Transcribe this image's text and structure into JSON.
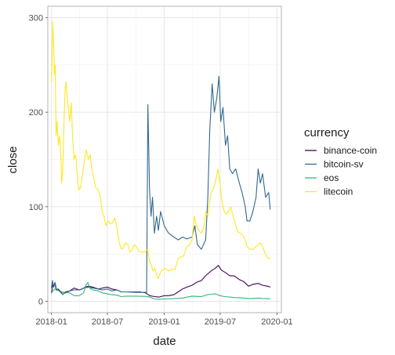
{
  "chart_data": {
    "type": "line",
    "xlabel": "date",
    "ylabel": "close",
    "x_scale": "date",
    "xlim": [
      "2017-12-20",
      "2020-01-15"
    ],
    "ylim": [
      -12,
      312
    ],
    "x_ticks": [
      {
        "date": "2018-01-01",
        "label": "2018-01"
      },
      {
        "date": "2018-07-01",
        "label": "2018-07"
      },
      {
        "date": "2019-01-01",
        "label": "2019-01"
      },
      {
        "date": "2019-07-01",
        "label": "2019-07"
      },
      {
        "date": "2020-01-01",
        "label": "2020-01"
      }
    ],
    "y_ticks": [
      0,
      100,
      200,
      300
    ],
    "grid": true,
    "legend_title": "currency",
    "legend_position": "right",
    "series": [
      {
        "name": "binance-coin",
        "color": "#440154",
        "points": [
          [
            "2018-01-01",
            8.5
          ],
          [
            "2018-01-05",
            18
          ],
          [
            "2018-01-08",
            15
          ],
          [
            "2018-01-12",
            20
          ],
          [
            "2018-01-16",
            12
          ],
          [
            "2018-01-22",
            13
          ],
          [
            "2018-02-01",
            10
          ],
          [
            "2018-02-06",
            7
          ],
          [
            "2018-02-15",
            10
          ],
          [
            "2018-03-01",
            11
          ],
          [
            "2018-03-15",
            14
          ],
          [
            "2018-04-01",
            12
          ],
          [
            "2018-04-10",
            13
          ],
          [
            "2018-04-20",
            15
          ],
          [
            "2018-05-01",
            16
          ],
          [
            "2018-05-15",
            15
          ],
          [
            "2018-06-01",
            13
          ],
          [
            "2018-06-15",
            14
          ],
          [
            "2018-07-01",
            15
          ],
          [
            "2018-07-15",
            13
          ],
          [
            "2018-08-01",
            12
          ],
          [
            "2018-08-15",
            10
          ],
          [
            "2018-09-01",
            10
          ],
          [
            "2018-09-15",
            10
          ],
          [
            "2018-10-01",
            10
          ],
          [
            "2018-10-15",
            10
          ],
          [
            "2018-11-01",
            9
          ],
          [
            "2018-11-15",
            6
          ],
          [
            "2018-12-01",
            5
          ],
          [
            "2018-12-15",
            4.5
          ],
          [
            "2019-01-01",
            6
          ],
          [
            "2019-01-15",
            6
          ],
          [
            "2019-02-01",
            7
          ],
          [
            "2019-02-15",
            10
          ],
          [
            "2019-03-01",
            13
          ],
          [
            "2019-03-15",
            15
          ],
          [
            "2019-04-01",
            17
          ],
          [
            "2019-04-15",
            20
          ],
          [
            "2019-05-01",
            22
          ],
          [
            "2019-05-15",
            27
          ],
          [
            "2019-06-01",
            32
          ],
          [
            "2019-06-15",
            35
          ],
          [
            "2019-06-25",
            38
          ],
          [
            "2019-07-05",
            33
          ],
          [
            "2019-07-20",
            30
          ],
          [
            "2019-08-01",
            27
          ],
          [
            "2019-08-15",
            27
          ],
          [
            "2019-09-01",
            23
          ],
          [
            "2019-09-15",
            21
          ],
          [
            "2019-10-01",
            16
          ],
          [
            "2019-10-15",
            18
          ],
          [
            "2019-11-01",
            19
          ],
          [
            "2019-11-15",
            17
          ],
          [
            "2019-12-01",
            16
          ],
          [
            "2019-12-10",
            15
          ]
        ]
      },
      {
        "name": "bitcoin-sv",
        "color": "#31688E",
        "points": [
          [
            "2018-01-01",
            14
          ],
          [
            "2018-01-04",
            22
          ],
          [
            "2018-01-08",
            15
          ],
          [
            "2018-01-12",
            20
          ],
          [
            "2018-01-18",
            12
          ],
          [
            "2018-02-01",
            10
          ],
          [
            "2018-02-15",
            9
          ],
          [
            "2018-03-01",
            11
          ],
          [
            "2018-03-15",
            12
          ],
          [
            "2018-04-01",
            12
          ],
          [
            "2018-04-15",
            14
          ],
          [
            "2018-05-01",
            15
          ],
          [
            "2018-05-15",
            14
          ],
          [
            "2018-06-01",
            13
          ],
          [
            "2018-06-15",
            12
          ],
          [
            "2018-07-01",
            13
          ],
          [
            "2018-07-15",
            11
          ],
          [
            "2018-08-01",
            12
          ],
          [
            "2018-08-15",
            10
          ],
          [
            "2018-09-01",
            10
          ],
          [
            "2018-10-01",
            9.5
          ],
          [
            "2018-11-05",
            9.5
          ],
          [
            "2018-11-09",
            208
          ],
          [
            "2018-11-14",
            120
          ],
          [
            "2018-11-19",
            90
          ],
          [
            "2018-11-24",
            110
          ],
          [
            "2018-11-30",
            72
          ],
          [
            "2018-12-07",
            90
          ],
          [
            "2018-12-13",
            75
          ],
          [
            "2018-12-20",
            95
          ],
          [
            "2019-01-01",
            80
          ],
          [
            "2019-01-15",
            72
          ],
          [
            "2019-02-01",
            68
          ],
          [
            "2019-02-15",
            65
          ],
          [
            "2019-03-01",
            68
          ],
          [
            "2019-03-15",
            66
          ],
          [
            "2019-04-01",
            68
          ],
          [
            "2019-04-10",
            80
          ],
          [
            "2019-04-18",
            60
          ],
          [
            "2019-05-01",
            55
          ],
          [
            "2019-05-15",
            65
          ],
          [
            "2019-05-22",
            110
          ],
          [
            "2019-05-28",
            180
          ],
          [
            "2019-06-05",
            230
          ],
          [
            "2019-06-12",
            200
          ],
          [
            "2019-06-20",
            215
          ],
          [
            "2019-06-27",
            238
          ],
          [
            "2019-07-03",
            190
          ],
          [
            "2019-07-10",
            205
          ],
          [
            "2019-07-18",
            165
          ],
          [
            "2019-07-25",
            175
          ],
          [
            "2019-08-01",
            140
          ],
          [
            "2019-08-10",
            135
          ],
          [
            "2019-08-20",
            140
          ],
          [
            "2019-09-01",
            125
          ],
          [
            "2019-09-10",
            115
          ],
          [
            "2019-09-20",
            100
          ],
          [
            "2019-09-26",
            85
          ],
          [
            "2019-10-05",
            85
          ],
          [
            "2019-10-15",
            95
          ],
          [
            "2019-10-25",
            110
          ],
          [
            "2019-11-01",
            140
          ],
          [
            "2019-11-08",
            125
          ],
          [
            "2019-11-15",
            135
          ],
          [
            "2019-11-25",
            110
          ],
          [
            "2019-12-05",
            115
          ],
          [
            "2019-12-10",
            97
          ]
        ]
      },
      {
        "name": "eos",
        "color": "#35B779",
        "points": [
          [
            "2018-01-01",
            9
          ],
          [
            "2018-01-08",
            12
          ],
          [
            "2018-01-15",
            14
          ],
          [
            "2018-01-25",
            11
          ],
          [
            "2018-02-06",
            7
          ],
          [
            "2018-02-15",
            9
          ],
          [
            "2018-03-01",
            9
          ],
          [
            "2018-03-15",
            6
          ],
          [
            "2018-04-01",
            6
          ],
          [
            "2018-04-15",
            9
          ],
          [
            "2018-04-22",
            17
          ],
          [
            "2018-04-29",
            20
          ],
          [
            "2018-05-05",
            14
          ],
          [
            "2018-05-15",
            12
          ],
          [
            "2018-06-01",
            11
          ],
          [
            "2018-06-15",
            9
          ],
          [
            "2018-07-01",
            8
          ],
          [
            "2018-07-15",
            7
          ],
          [
            "2018-08-01",
            6.5
          ],
          [
            "2018-08-15",
            5
          ],
          [
            "2018-09-01",
            5.5
          ],
          [
            "2018-10-01",
            5.5
          ],
          [
            "2018-11-01",
            5.2
          ],
          [
            "2018-11-15",
            4.5
          ],
          [
            "2018-12-01",
            2.5
          ],
          [
            "2018-12-15",
            2.2
          ],
          [
            "2019-01-01",
            2.6
          ],
          [
            "2019-02-01",
            2.8
          ],
          [
            "2019-03-01",
            3.5
          ],
          [
            "2019-04-01",
            5.5
          ],
          [
            "2019-05-01",
            5
          ],
          [
            "2019-05-20",
            7
          ],
          [
            "2019-06-01",
            7.5
          ],
          [
            "2019-06-15",
            8
          ],
          [
            "2019-07-01",
            6
          ],
          [
            "2019-07-15",
            5
          ],
          [
            "2019-08-01",
            4.5
          ],
          [
            "2019-08-15",
            4
          ],
          [
            "2019-09-01",
            3.8
          ],
          [
            "2019-09-15",
            3.5
          ],
          [
            "2019-10-01",
            3
          ],
          [
            "2019-10-15",
            3
          ],
          [
            "2019-11-01",
            3.5
          ],
          [
            "2019-11-15",
            3
          ],
          [
            "2019-12-01",
            2.8
          ],
          [
            "2019-12-10",
            2.6
          ]
        ]
      },
      {
        "name": "litecoin",
        "color": "#FDE725",
        "points": [
          [
            "2018-01-01",
            232
          ],
          [
            "2018-01-03",
            255
          ],
          [
            "2018-01-05",
            296
          ],
          [
            "2018-01-08",
            270
          ],
          [
            "2018-01-10",
            240
          ],
          [
            "2018-01-13",
            250
          ],
          [
            "2018-01-16",
            175
          ],
          [
            "2018-01-19",
            190
          ],
          [
            "2018-01-23",
            165
          ],
          [
            "2018-01-27",
            175
          ],
          [
            "2018-02-01",
            150
          ],
          [
            "2018-02-03",
            125
          ],
          [
            "2018-02-06",
            135
          ],
          [
            "2018-02-10",
            185
          ],
          [
            "2018-02-14",
            225
          ],
          [
            "2018-02-17",
            232
          ],
          [
            "2018-02-21",
            215
          ],
          [
            "2018-02-26",
            200
          ],
          [
            "2018-03-01",
            190
          ],
          [
            "2018-03-06",
            210
          ],
          [
            "2018-03-10",
            175
          ],
          [
            "2018-03-15",
            150
          ],
          [
            "2018-03-20",
            155
          ],
          [
            "2018-03-25",
            135
          ],
          [
            "2018-03-30",
            118
          ],
          [
            "2018-04-05",
            120
          ],
          [
            "2018-04-12",
            135
          ],
          [
            "2018-04-18",
            150
          ],
          [
            "2018-04-24",
            160
          ],
          [
            "2018-04-30",
            150
          ],
          [
            "2018-05-06",
            155
          ],
          [
            "2018-05-12",
            138
          ],
          [
            "2018-05-18",
            130
          ],
          [
            "2018-05-24",
            120
          ],
          [
            "2018-06-01",
            118
          ],
          [
            "2018-06-08",
            110
          ],
          [
            "2018-06-14",
            95
          ],
          [
            "2018-06-20",
            90
          ],
          [
            "2018-06-26",
            80
          ],
          [
            "2018-07-03",
            85
          ],
          [
            "2018-07-10",
            82
          ],
          [
            "2018-07-17",
            83
          ],
          [
            "2018-07-25",
            88
          ],
          [
            "2018-08-01",
            78
          ],
          [
            "2018-08-08",
            62
          ],
          [
            "2018-08-15",
            55
          ],
          [
            "2018-08-22",
            57
          ],
          [
            "2018-08-29",
            62
          ],
          [
            "2018-09-05",
            60
          ],
          [
            "2018-09-12",
            52
          ],
          [
            "2018-09-19",
            55
          ],
          [
            "2018-09-26",
            60
          ],
          [
            "2018-10-03",
            58
          ],
          [
            "2018-10-10",
            53
          ],
          [
            "2018-10-20",
            52
          ],
          [
            "2018-11-01",
            52
          ],
          [
            "2018-11-08",
            55
          ],
          [
            "2018-11-14",
            42
          ],
          [
            "2018-11-20",
            38
          ],
          [
            "2018-11-25",
            32
          ],
          [
            "2018-12-01",
            35
          ],
          [
            "2018-12-07",
            28
          ],
          [
            "2018-12-13",
            24
          ],
          [
            "2018-12-19",
            30
          ],
          [
            "2018-12-26",
            33
          ],
          [
            "2019-01-05",
            35
          ],
          [
            "2019-01-15",
            32
          ],
          [
            "2019-01-25",
            34
          ],
          [
            "2019-02-05",
            34
          ],
          [
            "2019-02-15",
            45
          ],
          [
            "2019-02-24",
            47
          ],
          [
            "2019-03-05",
            48
          ],
          [
            "2019-03-15",
            58
          ],
          [
            "2019-03-25",
            60
          ],
          [
            "2019-04-01",
            65
          ],
          [
            "2019-04-08",
            90
          ],
          [
            "2019-04-15",
            80
          ],
          [
            "2019-04-22",
            75
          ],
          [
            "2019-05-01",
            72
          ],
          [
            "2019-05-10",
            80
          ],
          [
            "2019-05-15",
            95
          ],
          [
            "2019-05-22",
            90
          ],
          [
            "2019-06-01",
            115
          ],
          [
            "2019-06-10",
            120
          ],
          [
            "2019-06-18",
            130
          ],
          [
            "2019-06-24",
            140
          ],
          [
            "2019-06-30",
            125
          ],
          [
            "2019-07-07",
            105
          ],
          [
            "2019-07-14",
            95
          ],
          [
            "2019-07-21",
            92
          ],
          [
            "2019-07-28",
            95
          ],
          [
            "2019-08-04",
            100
          ],
          [
            "2019-08-12",
            90
          ],
          [
            "2019-08-20",
            80
          ],
          [
            "2019-08-28",
            73
          ],
          [
            "2019-09-05",
            72
          ],
          [
            "2019-09-12",
            70
          ],
          [
            "2019-09-20",
            65
          ],
          [
            "2019-09-26",
            58
          ],
          [
            "2019-10-05",
            55
          ],
          [
            "2019-10-15",
            55
          ],
          [
            "2019-10-25",
            58
          ],
          [
            "2019-11-01",
            60
          ],
          [
            "2019-11-08",
            62
          ],
          [
            "2019-11-15",
            58
          ],
          [
            "2019-11-22",
            52
          ],
          [
            "2019-11-28",
            48
          ],
          [
            "2019-12-05",
            45
          ],
          [
            "2019-12-10",
            46
          ]
        ]
      }
    ]
  }
}
